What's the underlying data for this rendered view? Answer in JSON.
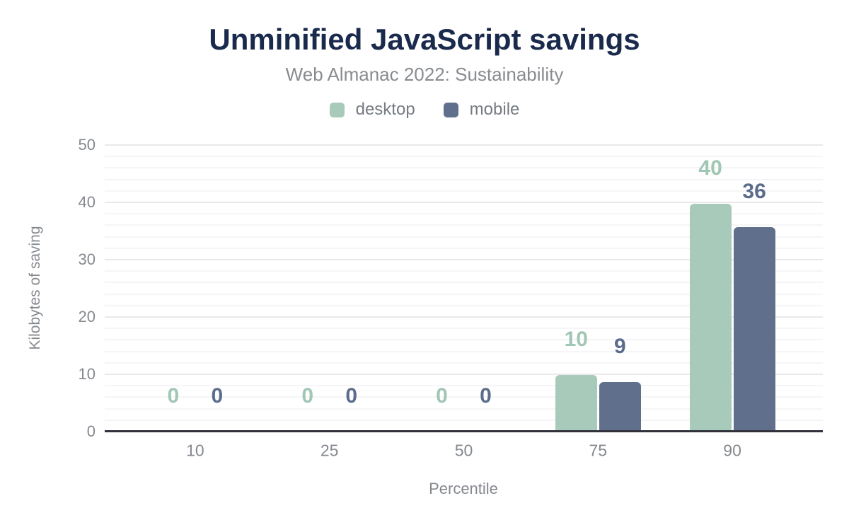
{
  "title": "Unminified JavaScript savings",
  "subtitle": "Web Almanac 2022: Sustainability",
  "legend": {
    "items": [
      {
        "label": "desktop",
        "color": "#a7cabb"
      },
      {
        "label": "mobile",
        "color": "#60708c"
      }
    ]
  },
  "chart_data": {
    "type": "bar",
    "title": "Unminified JavaScript savings",
    "subtitle": "Web Almanac 2022: Sustainability",
    "xlabel": "Percentile",
    "ylabel": "Kilobytes of saving",
    "categories": [
      "10",
      "25",
      "50",
      "75",
      "90"
    ],
    "series": [
      {
        "name": "desktop",
        "color": "#a7cabb",
        "label_color": "#a0c6b4",
        "values": [
          0,
          0,
          0,
          9.9,
          39.7
        ],
        "labels": [
          "0",
          "0",
          "0",
          "10",
          "40"
        ]
      },
      {
        "name": "mobile",
        "color": "#60708c",
        "label_color": "#5b6c8d",
        "values": [
          0,
          0,
          0,
          8.7,
          35.7
        ],
        "labels": [
          "0",
          "0",
          "0",
          "9",
          "36"
        ]
      }
    ],
    "ylim": [
      0,
      50
    ],
    "yticks": [
      0,
      10,
      20,
      30,
      40,
      50
    ],
    "grid": {
      "minor_step": 2,
      "major_step": 10,
      "visible": true
    },
    "legend_position": "top"
  }
}
